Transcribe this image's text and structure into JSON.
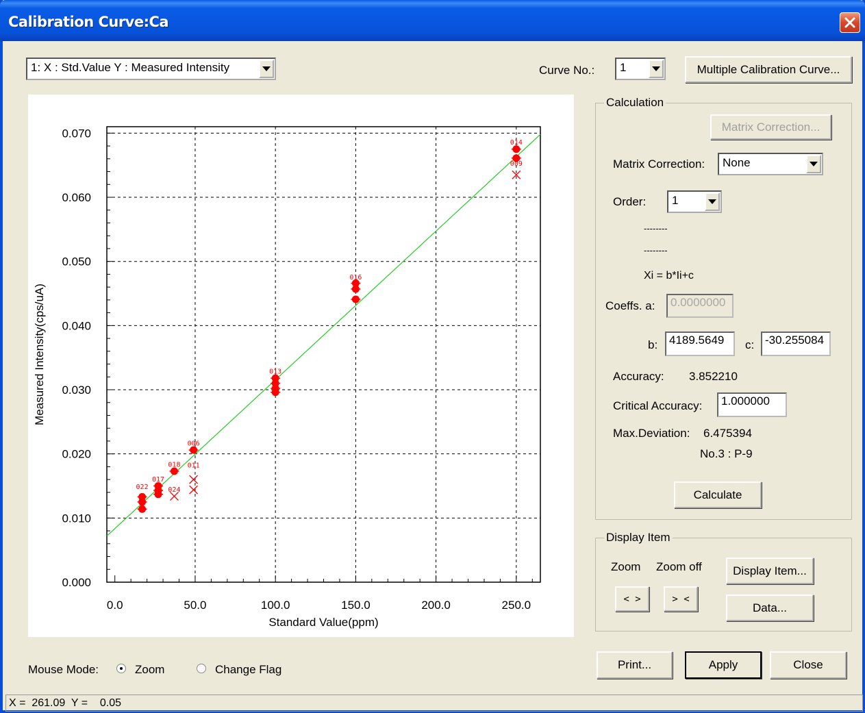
{
  "window": {
    "title": "Calibration Curve:Ca"
  },
  "toolbar": {
    "axis_select_value": "1: X : Std.Value  Y : Measured Intensity",
    "curve_no_label": "Curve No.:",
    "curve_no_value": "1",
    "multi_button": "Multiple Calibration Curve..."
  },
  "calculation": {
    "group_title": "Calculation",
    "matrix_button": "Matrix Correction...",
    "matrix_label": "Matrix Correction:",
    "matrix_value": "None",
    "order_label": "Order:",
    "order_value": "1",
    "dash1": "--------",
    "dash2": "--------",
    "formula": "Xi = b*Ii+c",
    "coeffs_label": "Coeffs.  a:",
    "coeff_a": "0.0000000",
    "b_label": "b:",
    "coeff_b": "4189.5649",
    "c_label": "c:",
    "coeff_c": "-30.255084",
    "accuracy_label": "Accuracy:",
    "accuracy_value": "3.852210",
    "critical_label": "Critical Accuracy:",
    "critical_value": "1.000000",
    "maxdev_label": "Max.Deviation:",
    "maxdev_value": "6.475394",
    "maxdev_sample": "No.3 : P-9",
    "calculate_button": "Calculate"
  },
  "display": {
    "group_title": "Display Item",
    "zoom_label": "Zoom",
    "zoomoff_label": "Zoom off",
    "zoom_in_glyph": "< >",
    "zoom_out_glyph": "> <",
    "display_item_button": "Display Item...",
    "data_button": "Data..."
  },
  "footer": {
    "mouse_mode_label": "Mouse Mode:",
    "zoom_radio": "Zoom",
    "change_flag_radio": "Change Flag",
    "print_button": "Print...",
    "apply_button": "Apply",
    "close_button": "Close",
    "status": "X =  261.09  Y =    0.05"
  },
  "chart_data": {
    "type": "scatter",
    "xlabel": "Standard Value(ppm)",
    "ylabel": "Measured Intensity(cps/uA)",
    "xlim": [
      -5,
      265
    ],
    "ylim": [
      0.0,
      0.071
    ],
    "x_ticks": [
      0,
      50,
      100,
      150,
      200,
      250
    ],
    "x_tick_labels": [
      "0.0",
      "50.0",
      "100.0",
      "150.0",
      "200.0",
      "250.0"
    ],
    "y_ticks": [
      0.0,
      0.01,
      0.02,
      0.03,
      0.04,
      0.05,
      0.06,
      0.07
    ],
    "y_tick_labels": [
      "0.000",
      "0.010",
      "0.020",
      "0.030",
      "0.040",
      "0.050",
      "0.060",
      "0.070"
    ],
    "grid": true,
    "fit_line": {
      "color": "#22cc22",
      "x": [
        -5,
        265
      ],
      "y": [
        0.0072,
        0.0698
      ]
    },
    "point_color": "#ff0000",
    "points": [
      {
        "x": 17,
        "y": 0.0114,
        "marker": "dot"
      },
      {
        "x": 17,
        "y": 0.0125,
        "marker": "dot"
      },
      {
        "x": 17,
        "y": 0.0133,
        "marker": "dot"
      },
      {
        "x": 27,
        "y": 0.0137,
        "marker": "dot"
      },
      {
        "x": 27,
        "y": 0.0143,
        "marker": "dot"
      },
      {
        "x": 27,
        "y": 0.015,
        "marker": "dot"
      },
      {
        "x": 37,
        "y": 0.0173,
        "marker": "dot"
      },
      {
        "x": 37,
        "y": 0.0134,
        "marker": "cross"
      },
      {
        "x": 49,
        "y": 0.0206,
        "marker": "dot"
      },
      {
        "x": 49,
        "y": 0.0144,
        "marker": "cross"
      },
      {
        "x": 49,
        "y": 0.016,
        "marker": "cross"
      },
      {
        "x": 100,
        "y": 0.0296,
        "marker": "dot"
      },
      {
        "x": 100,
        "y": 0.0302,
        "marker": "dot"
      },
      {
        "x": 100,
        "y": 0.031,
        "marker": "dot"
      },
      {
        "x": 100,
        "y": 0.0318,
        "marker": "dot"
      },
      {
        "x": 150,
        "y": 0.0441,
        "marker": "dot"
      },
      {
        "x": 150,
        "y": 0.0457,
        "marker": "dot"
      },
      {
        "x": 150,
        "y": 0.0466,
        "marker": "dot"
      },
      {
        "x": 250,
        "y": 0.0661,
        "marker": "dot"
      },
      {
        "x": 250,
        "y": 0.0675,
        "marker": "dot"
      },
      {
        "x": 250,
        "y": 0.0635,
        "marker": "cross"
      }
    ],
    "point_labels": [
      {
        "x": 17,
        "y": 0.0145,
        "text": "022"
      },
      {
        "x": 27,
        "y": 0.0157,
        "text": "017"
      },
      {
        "x": 37,
        "y": 0.018,
        "text": "018"
      },
      {
        "x": 37,
        "y": 0.0141,
        "text": "024"
      },
      {
        "x": 49,
        "y": 0.0213,
        "text": "006"
      },
      {
        "x": 49,
        "y": 0.0179,
        "text": "011"
      },
      {
        "x": 100,
        "y": 0.0325,
        "text": "013"
      },
      {
        "x": 150,
        "y": 0.0472,
        "text": "016"
      },
      {
        "x": 250,
        "y": 0.0682,
        "text": "014"
      },
      {
        "x": 250,
        "y": 0.0649,
        "text": "009"
      }
    ]
  }
}
